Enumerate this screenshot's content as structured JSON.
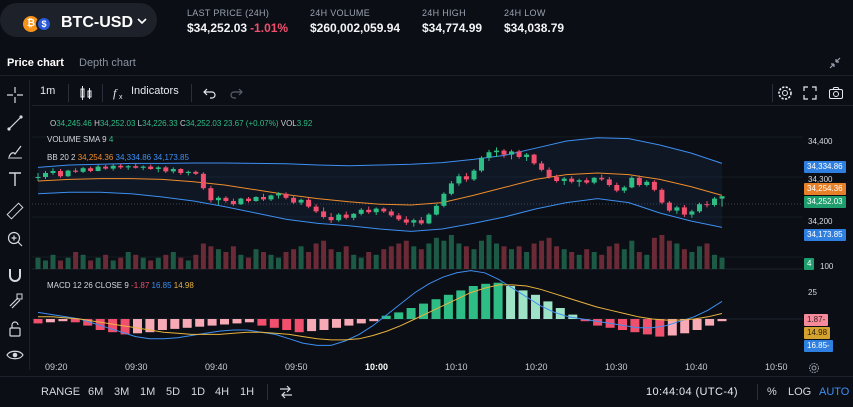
{
  "pair": {
    "base_icon": "bitcoin-icon",
    "quote_icon": "dollar-coin-icon",
    "name": "BTC-USD"
  },
  "stats": [
    {
      "label": "LAST PRICE (24H)",
      "value": "$34,252.03",
      "change": "-1.01%"
    },
    {
      "label": "24H VOLUME",
      "value": "$260,002,059.94"
    },
    {
      "label": "24H HIGH",
      "value": "$34,774.99"
    },
    {
      "label": "24H LOW",
      "value": "$34,038.79"
    }
  ],
  "tabs": {
    "price": "Price chart",
    "depth": "Depth chart"
  },
  "toolbar": {
    "interval": "1m",
    "indicators": "Indicators"
  },
  "ohlc": {
    "o_label": "O",
    "o": "34,245.46",
    "h_label": "H",
    "h": "34,252.03",
    "l_label": "L",
    "l": "34,226.33",
    "c_label": "C",
    "c": "34,252.03",
    "change": "23.67 (+0.07%)",
    "vol_label": "VOL",
    "vol": "3.92"
  },
  "volume_sma": {
    "label": "VOLUME SMA 9",
    "value": "4"
  },
  "bb": {
    "label": "BB 20 2",
    "mid": "34,254.36",
    "upper": "34,334.86",
    "lower": "34,173.85"
  },
  "macd": {
    "label": "MACD 12 26 CLOSE 9",
    "hist": "-1.87",
    "macd": "16.85",
    "signal": "14.98"
  },
  "price_scale": {
    "ticks": [
      "34,400",
      "34,300",
      "34,200",
      "100",
      "25"
    ]
  },
  "price_tags": [
    {
      "text": "34,334.86",
      "color": "#2f7fe0"
    },
    {
      "text": "34,254.36",
      "color": "#e8802a"
    },
    {
      "text": "34,252.03",
      "color": "#1f9e6d"
    },
    {
      "text": "34,173.85",
      "color": "#2f7fe0"
    },
    {
      "text": "4",
      "color": "#1f9e6d"
    },
    {
      "text": "1.87-",
      "color": "#f58a9a"
    },
    {
      "text": "14.98",
      "color": "#d4a22e"
    },
    {
      "text": "16.85-",
      "color": "#2f7fe0"
    }
  ],
  "x_axis": [
    "09:20",
    "09:30",
    "09:40",
    "09:50",
    "10:00",
    "10:10",
    "10:20",
    "10:30",
    "10:40",
    "10:50"
  ],
  "ranges": [
    "RANGE",
    "6M",
    "3M",
    "1M",
    "5D",
    "1D",
    "4H",
    "1H"
  ],
  "clock": "10:44:04 (UTC-4)",
  "scale_modes": {
    "pct": "%",
    "log": "LOG",
    "auto": "AUTO"
  },
  "colors": {
    "up": "#2ebd85",
    "down": "#f0506e",
    "bb_mid": "#f08c2e",
    "bb_band": "#3d8ff2",
    "macd_signal": "#e8b440"
  },
  "chart_data": {
    "type": "candlestick",
    "interval": "1m",
    "y_ticks": [
      34200,
      34300,
      34400
    ],
    "x_ticks": [
      "09:20",
      "09:30",
      "09:40",
      "09:50",
      "10:00",
      "10:10",
      "10:20",
      "10:30",
      "10:40",
      "10:50"
    ],
    "candles": [
      [
        34300,
        34310,
        34290,
        34300
      ],
      [
        34300,
        34315,
        34295,
        34310
      ],
      [
        34310,
        34322,
        34305,
        34315
      ],
      [
        34315,
        34320,
        34298,
        34302
      ],
      [
        34302,
        34318,
        34300,
        34316
      ],
      [
        34316,
        34322,
        34310,
        34313
      ],
      [
        34313,
        34325,
        34310,
        34322
      ],
      [
        34322,
        34326,
        34312,
        34315
      ],
      [
        34315,
        34330,
        34314,
        34326
      ],
      [
        34326,
        34330,
        34318,
        34321
      ],
      [
        34321,
        34332,
        34316,
        34328
      ],
      [
        34328,
        34333,
        34320,
        34324
      ],
      [
        34324,
        34330,
        34318,
        34327
      ],
      [
        34327,
        34334,
        34321,
        34323
      ],
      [
        34323,
        34329,
        34317,
        34326
      ],
      [
        34326,
        34331,
        34318,
        34320
      ],
      [
        34320,
        34327,
        34312,
        34324
      ],
      [
        34324,
        34328,
        34310,
        34314
      ],
      [
        34314,
        34324,
        34309,
        34320
      ],
      [
        34320,
        34322,
        34305,
        34310
      ],
      [
        34310,
        34316,
        34304,
        34313
      ],
      [
        34313,
        34316,
        34305,
        34308
      ],
      [
        34308,
        34312,
        34268,
        34272
      ],
      [
        34272,
        34278,
        34236,
        34242
      ],
      [
        34242,
        34252,
        34230,
        34248
      ],
      [
        34248,
        34252,
        34236,
        34240
      ],
      [
        34240,
        34246,
        34228,
        34232
      ],
      [
        34232,
        34248,
        34230,
        34246
      ],
      [
        34246,
        34250,
        34236,
        34240
      ],
      [
        34240,
        34252,
        34238,
        34250
      ],
      [
        34250,
        34258,
        34240,
        34244
      ],
      [
        34244,
        34256,
        34240,
        34254
      ],
      [
        34254,
        34262,
        34246,
        34258
      ],
      [
        34258,
        34262,
        34244,
        34248
      ],
      [
        34248,
        34255,
        34232,
        34236
      ],
      [
        34236,
        34246,
        34230,
        34243
      ],
      [
        34243,
        34248,
        34222,
        34226
      ],
      [
        34226,
        34232,
        34210,
        34214
      ],
      [
        34214,
        34224,
        34196,
        34200
      ],
      [
        34200,
        34210,
        34185,
        34192
      ],
      [
        34192,
        34210,
        34188,
        34206
      ],
      [
        34206,
        34214,
        34194,
        34198
      ],
      [
        34198,
        34210,
        34192,
        34208
      ],
      [
        34208,
        34222,
        34204,
        34218
      ],
      [
        34218,
        34226,
        34208,
        34212
      ],
      [
        34212,
        34224,
        34205,
        34221
      ],
      [
        34221,
        34224,
        34210,
        34214
      ],
      [
        34214,
        34220,
        34200,
        34204
      ],
      [
        34204,
        34210,
        34190,
        34194
      ],
      [
        34194,
        34202,
        34180,
        34186
      ],
      [
        34186,
        34196,
        34176,
        34192
      ],
      [
        34192,
        34200,
        34180,
        34184
      ],
      [
        34184,
        34210,
        34182,
        34206
      ],
      [
        34206,
        34232,
        34204,
        34228
      ],
      [
        34228,
        34262,
        34224,
        34258
      ],
      [
        34258,
        34290,
        34254,
        34284
      ],
      [
        34284,
        34308,
        34278,
        34302
      ],
      [
        34302,
        34310,
        34288,
        34294
      ],
      [
        34294,
        34320,
        34290,
        34316
      ],
      [
        34316,
        34352,
        34312,
        34348
      ],
      [
        34348,
        34368,
        34340,
        34362
      ],
      [
        34362,
        34374,
        34350,
        34366
      ],
      [
        34366,
        34370,
        34348,
        34356
      ],
      [
        34356,
        34368,
        34344,
        34364
      ],
      [
        34364,
        34368,
        34346,
        34350
      ],
      [
        34350,
        34360,
        34340,
        34356
      ],
      [
        34356,
        34358,
        34330,
        34334
      ],
      [
        34334,
        34340,
        34314,
        34318
      ],
      [
        34318,
        34324,
        34296,
        34300
      ],
      [
        34300,
        34306,
        34286,
        34290
      ],
      [
        34290,
        34300,
        34280,
        34296
      ],
      [
        34296,
        34302,
        34284,
        34288
      ],
      [
        34288,
        34296,
        34276,
        34292
      ],
      [
        34292,
        34298,
        34282,
        34286
      ],
      [
        34286,
        34300,
        34282,
        34298
      ],
      [
        34298,
        34306,
        34290,
        34294
      ],
      [
        34294,
        34300,
        34276,
        34280
      ],
      [
        34280,
        34286,
        34262,
        34266
      ],
      [
        34266,
        34278,
        34260,
        34274
      ],
      [
        34274,
        34302,
        34272,
        34298
      ],
      [
        34298,
        34304,
        34276,
        34280
      ],
      [
        34280,
        34292,
        34276,
        34288
      ],
      [
        34288,
        34292,
        34264,
        34268
      ],
      [
        34268,
        34272,
        34232,
        34236
      ],
      [
        34236,
        34240,
        34212,
        34216
      ],
      [
        34216,
        34228,
        34208,
        34224
      ],
      [
        34224,
        34230,
        34200,
        34206
      ],
      [
        34206,
        34218,
        34198,
        34214
      ],
      [
        34214,
        34236,
        34210,
        34232
      ],
      [
        34232,
        34240,
        34224,
        34230
      ],
      [
        34230,
        34250,
        34226,
        34246
      ],
      [
        34246,
        34252,
        34226,
        34252
      ]
    ],
    "volume": [
      4,
      3,
      5,
      3,
      4,
      6,
      5,
      3,
      4,
      5,
      3,
      4,
      6,
      5,
      4,
      3,
      4,
      5,
      6,
      4,
      3,
      5,
      9,
      8,
      7,
      6,
      8,
      5,
      4,
      7,
      6,
      5,
      4,
      6,
      7,
      8,
      6,
      9,
      10,
      7,
      6,
      8,
      5,
      4,
      6,
      5,
      7,
      8,
      9,
      10,
      8,
      7,
      9,
      11,
      10,
      12,
      9,
      8,
      7,
      10,
      12,
      9,
      8,
      7,
      8,
      6,
      9,
      10,
      11,
      8,
      7,
      6,
      5,
      7,
      6,
      5,
      8,
      9,
      7,
      10,
      6,
      5,
      11,
      12,
      10,
      9,
      7,
      6,
      8,
      9,
      5,
      4
    ],
    "bb_upper": [
      34324,
      34330,
      34332,
      34334,
      34334,
      34335,
      34335,
      34334,
      34333,
      34330,
      34328,
      34330,
      34332,
      34336,
      34344,
      34354,
      34372,
      34390,
      34398,
      34396,
      34380,
      34360,
      34334
    ],
    "bb_mid": [
      34290,
      34294,
      34296,
      34296,
      34294,
      34288,
      34280,
      34268,
      34256,
      34246,
      34238,
      34232,
      34230,
      34236,
      34254,
      34274,
      34294,
      34306,
      34310,
      34306,
      34294,
      34276,
      34254
    ],
    "bb_lower": [
      34258,
      34262,
      34262,
      34258,
      34250,
      34240,
      34226,
      34210,
      34194,
      34184,
      34178,
      34170,
      34164,
      34170,
      34184,
      34200,
      34220,
      34236,
      34246,
      34236,
      34210,
      34190,
      34174
    ],
    "macd_hist": [
      -4,
      -3,
      -2,
      -3,
      -6,
      -10,
      -12,
      -14,
      -13,
      -12,
      -10,
      -9,
      -8,
      -7,
      -6,
      -5,
      -4,
      -3,
      -6,
      -8,
      -10,
      -12,
      -11,
      -10,
      -8,
      -6,
      -4,
      -2,
      3,
      6,
      10,
      14,
      18,
      22,
      26,
      30,
      32,
      33,
      30,
      26,
      22,
      16,
      10,
      4,
      -2,
      -6,
      -8,
      -10,
      -12,
      -14,
      -16,
      -15,
      -13,
      -10,
      -6,
      -2
    ],
    "macd_line": [
      6,
      4,
      2,
      0,
      -4,
      -8,
      -12,
      -16,
      -18,
      -18,
      -17,
      -15,
      -13,
      -11,
      -10,
      -10,
      -12,
      -14,
      -18,
      -22,
      -24,
      -24,
      -20,
      -14,
      -6,
      4,
      14,
      24,
      32,
      38,
      42,
      44,
      42,
      36,
      28,
      20,
      12,
      6,
      2,
      0,
      -2,
      -4,
      -6,
      -8,
      -8,
      -6,
      -2,
      2,
      8,
      16
    ],
    "macd_signal": [
      2,
      2,
      1,
      0,
      -2,
      -4,
      -6,
      -8,
      -10,
      -12,
      -13,
      -14,
      -14,
      -14,
      -13,
      -12,
      -12,
      -13,
      -14,
      -16,
      -18,
      -19,
      -19,
      -18,
      -15,
      -11,
      -6,
      0,
      6,
      12,
      18,
      24,
      28,
      31,
      31,
      30,
      27,
      23,
      19,
      15,
      11,
      8,
      5,
      2,
      0,
      -1,
      -1,
      0,
      2,
      5
    ]
  }
}
